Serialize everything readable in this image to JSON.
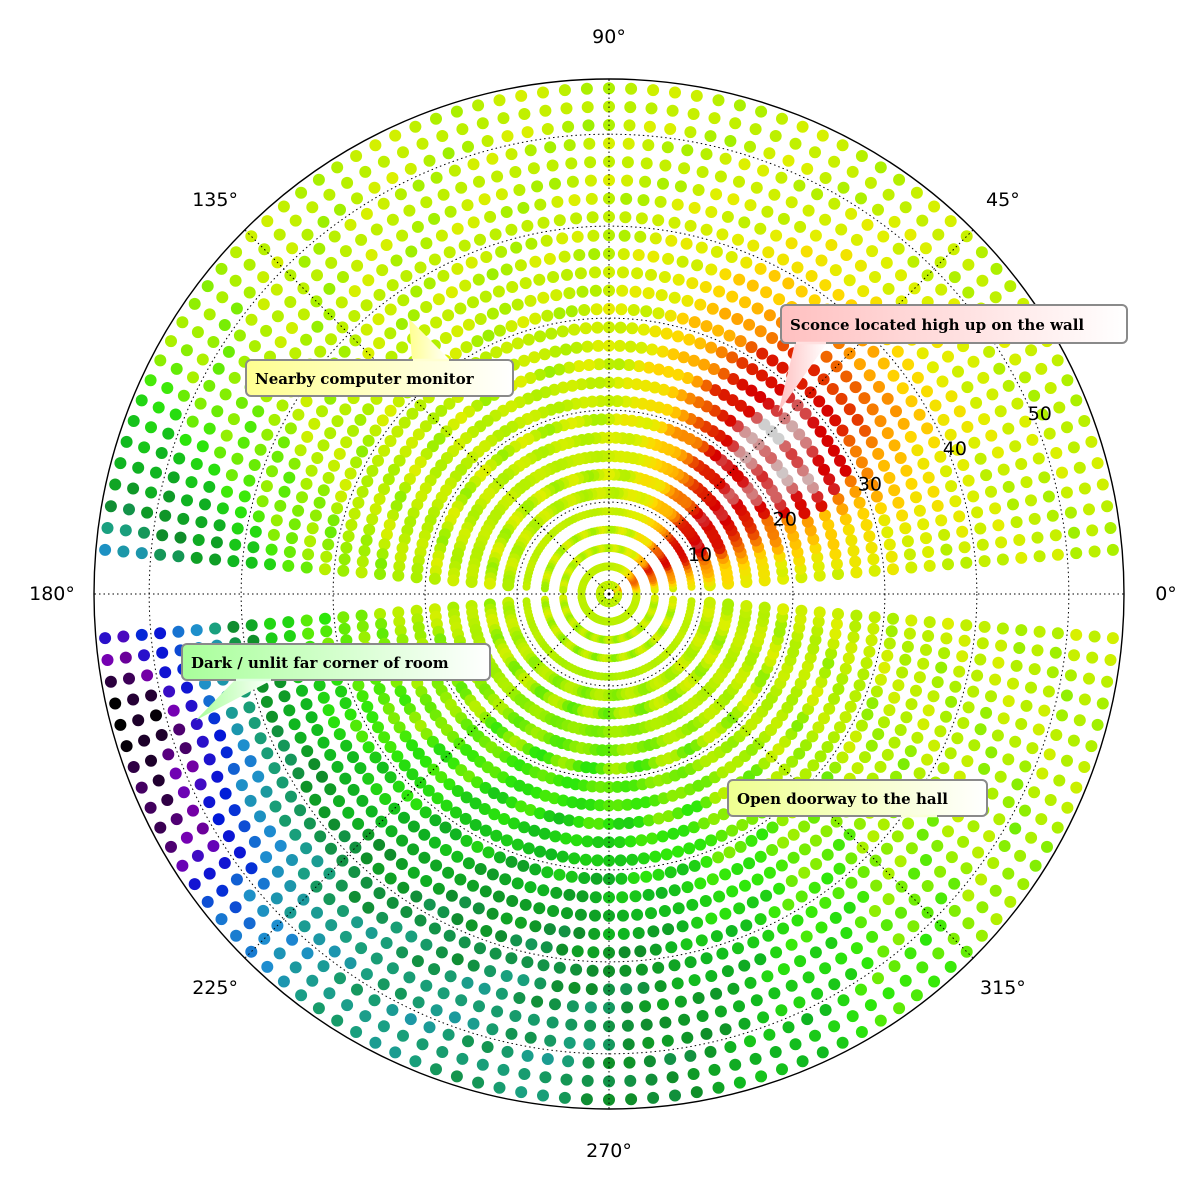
{
  "chart_data": {
    "type": "scatter",
    "projection": "polar",
    "angle_tick_labels": [
      "0°",
      "45°",
      "90°",
      "135°",
      "180°",
      "225°",
      "270°",
      "315°"
    ],
    "angle_ticks_deg": [
      0,
      45,
      90,
      135,
      180,
      225,
      270,
      315
    ],
    "radial_tick_labels": [
      "10",
      "20",
      "30",
      "40",
      "50"
    ],
    "radial_ticks": [
      10,
      20,
      30,
      40,
      50
    ],
    "rlim": [
      0,
      56
    ],
    "radial_label_angle_deg": 22.5,
    "grid": true,
    "grid_style": "dotted",
    "theta_step_deg": 2.5,
    "r_step": 2,
    "r_max_point": 55,
    "empty_theta_sectors_deg": [
      [
        0,
        3
      ],
      [
        177,
        183
      ]
    ],
    "colormap_low_to_high": [
      "#000000",
      "#7a00b0",
      "#0018d8",
      "#1e8ecf",
      "#1aa080",
      "#0f8c2a",
      "#10b820",
      "#2ee80a",
      "#a8f000",
      "#e2f000",
      "#ffd800",
      "#ffa300",
      "#f26a00",
      "#de2000",
      "#d60000",
      "#cfcfcf"
    ],
    "intensity_field": {
      "description_scale": "0 = darkest (black), 1 = brightest (light grey)",
      "base": 0.56,
      "sources": [
        {
          "theta_deg": 45,
          "r": 25,
          "strength": 0.42,
          "spread": 14
        },
        {
          "theta_deg": 30,
          "r": 8,
          "strength": 0.28,
          "spread": 10
        }
      ],
      "sinks": [
        {
          "theta_deg": 195,
          "r": 55,
          "strength": 0.5,
          "spread": 16
        },
        {
          "theta_deg": 255,
          "r": 50,
          "strength": 0.28,
          "spread": 26
        }
      ],
      "hotspot": {
        "theta_deg": 37,
        "r": 24,
        "level": 1.0
      }
    },
    "annotations": [
      {
        "text": "Sconce located high up on the wall",
        "target_theta_deg": 47,
        "target_r": 27,
        "style": "callout",
        "fill": "#ffc8c8"
      },
      {
        "text": "Nearby computer monitor",
        "target_theta_deg": 126,
        "target_r": 37,
        "style": "callout",
        "fill": "#ffffb0"
      },
      {
        "text": "Dark / unlit far corner of room",
        "target_theta_deg": 197,
        "target_r": 47,
        "style": "callout",
        "fill": "#c8ffc0"
      },
      {
        "text": "Open doorway to the hall",
        "target_theta_deg": 330,
        "target_r": 45,
        "style": "callout",
        "fill": "#f4ffb0"
      }
    ]
  }
}
